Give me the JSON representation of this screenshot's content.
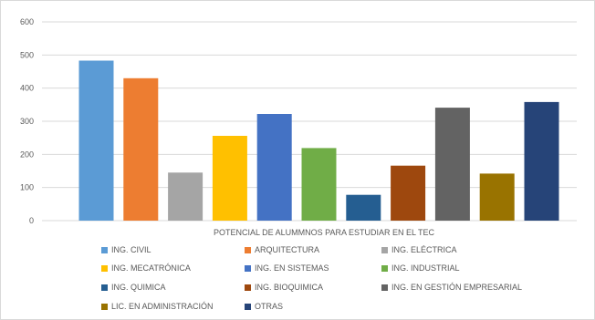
{
  "chart_data": {
    "type": "bar",
    "xlabel": "POTENCIAL DE ALUMMNOS PARA ESTUDIAR EN EL TEC",
    "ylim": [
      0,
      600
    ],
    "yticks": [
      "0",
      "100",
      "200",
      "300",
      "400",
      "500",
      "600"
    ],
    "grid": true,
    "legend_position": "bottom",
    "series": [
      {
        "name": "ING. CIVIL",
        "value": 483,
        "color": "#5b9bd5"
      },
      {
        "name": "ARQUITECTURA",
        "value": 430,
        "color": "#ed7d31"
      },
      {
        "name": "ING. ELÉCTRICA",
        "value": 145,
        "color": "#a5a5a5"
      },
      {
        "name": "ING. MECATRÓNICA",
        "value": 256,
        "color": "#ffc000"
      },
      {
        "name": "ING. EN SISTEMAS",
        "value": 322,
        "color": "#4472c4"
      },
      {
        "name": "ING. INDUSTRIAL",
        "value": 219,
        "color": "#70ad47"
      },
      {
        "name": "ING. QUIMICA",
        "value": 78,
        "color": "#255e91"
      },
      {
        "name": "ING. BIOQUIMICA",
        "value": 166,
        "color": "#9e480e"
      },
      {
        "name": "ING. EN GESTIÓN EMPRESARIAL",
        "value": 341,
        "color": "#636363"
      },
      {
        "name": "LIC. EN ADMINISTRACIÓN",
        "value": 142,
        "color": "#997300"
      },
      {
        "name": "OTRAS",
        "value": 358,
        "color": "#264478"
      }
    ]
  }
}
